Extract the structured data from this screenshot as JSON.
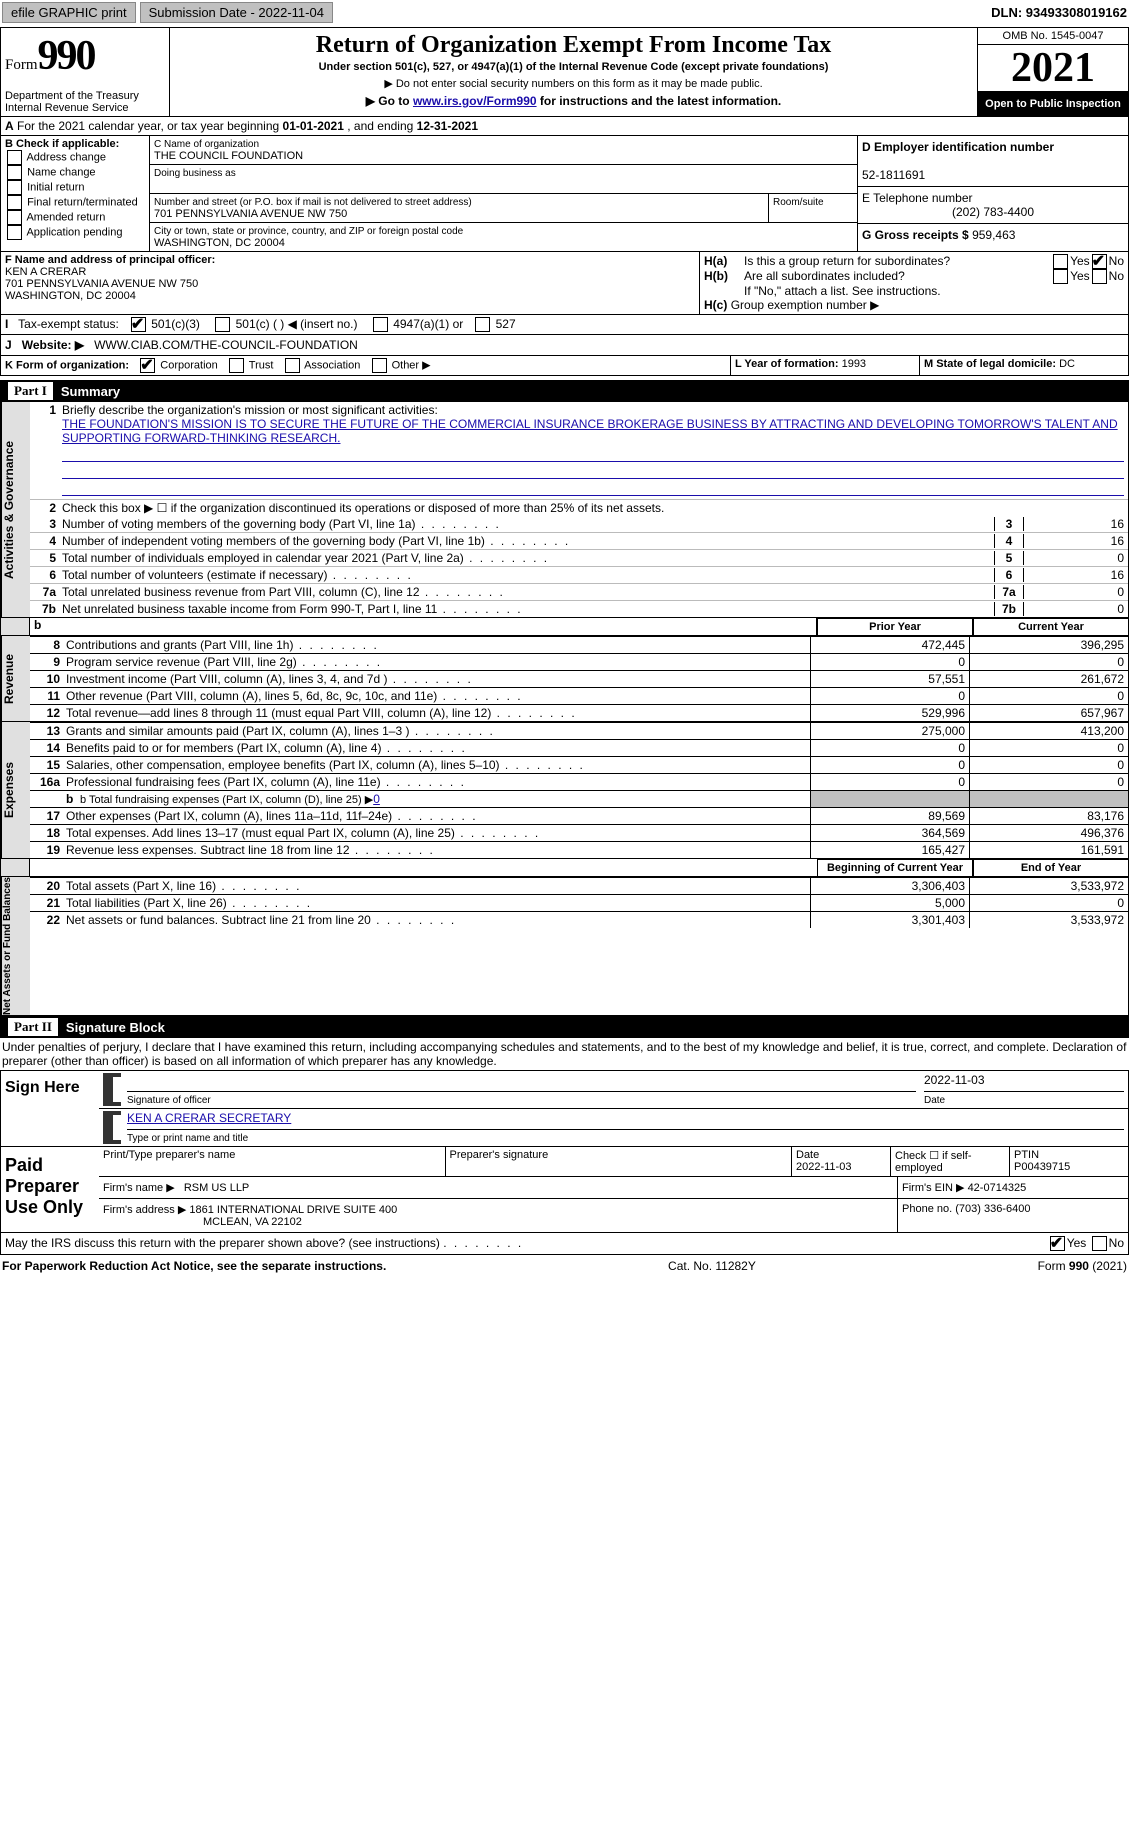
{
  "topbar": {
    "efile_label": "efile GRAPHIC print",
    "submission_label": "Submission Date - 2022-11-04",
    "dln": "DLN: 93493308019162"
  },
  "header": {
    "form_word": "Form",
    "form_number": "990",
    "dept": "Department of the Treasury",
    "irs": "Internal Revenue Service",
    "title": "Return of Organization Exempt From Income Tax",
    "subtitle": "Under section 501(c), 527, or 4947(a)(1) of the Internal Revenue Code (except private foundations)",
    "note1": "▶ Do not enter social security numbers on this form as it may be made public.",
    "note2_pre": "▶ Go to ",
    "note2_link": "www.irs.gov/Form990",
    "note2_post": " for instructions and the latest information.",
    "omb": "OMB No. 1545-0047",
    "tax_year": "2021",
    "open": "Open to Public Inspection"
  },
  "periodA": {
    "text_pre": "For the 2021 calendar year, or tax year beginning ",
    "begin": "01-01-2021",
    "mid": " , and ending ",
    "end": "12-31-2021"
  },
  "boxB": {
    "label": "B Check if applicable:",
    "opts": [
      "Address change",
      "Name change",
      "Initial return",
      "Final return/terminated",
      "Amended return",
      "Application pending"
    ]
  },
  "boxC": {
    "name_label": "C Name of organization",
    "name": "THE COUNCIL FOUNDATION",
    "dba_label": "Doing business as",
    "street_label": "Number and street (or P.O. box if mail is not delivered to street address)",
    "room_label": "Room/suite",
    "street": "701 PENNSYLVANIA AVENUE NW 750",
    "city_label": "City or town, state or province, country, and ZIP or foreign postal code",
    "city": "WASHINGTON, DC  20004"
  },
  "boxD": {
    "label": "D Employer identification number",
    "value": "52-1811691"
  },
  "boxE": {
    "label": "E Telephone number",
    "value": "(202) 783-4400"
  },
  "boxG": {
    "label": "G Gross receipts $",
    "value": "959,463"
  },
  "boxF": {
    "label": "F Name and address of principal officer:",
    "name": "KEN A CRERAR",
    "addr": "701 PENNSYLVANIA AVENUE NW 750",
    "city": "WASHINGTON, DC  20004"
  },
  "boxH": {
    "a": "Is this a group return for subordinates?",
    "b": "Are all subordinates included?",
    "note": "If \"No,\" attach a list. See instructions.",
    "c": "Group exemption number ▶",
    "yes": "Yes",
    "no": "No"
  },
  "boxI": {
    "label": "Tax-exempt status:",
    "o1": "501(c)(3)",
    "o2": "501(c) (  ) ◀ (insert no.)",
    "o3": "4947(a)(1) or",
    "o4": "527"
  },
  "boxJ": {
    "label": "Website: ▶",
    "value": "WWW.CIAB.COM/THE-COUNCIL-FOUNDATION"
  },
  "boxK": {
    "label": "K Form of organization:",
    "opts": [
      "Corporation",
      "Trust",
      "Association",
      "Other ▶"
    ]
  },
  "boxL": {
    "label": "L Year of formation:",
    "value": "1993"
  },
  "boxM": {
    "label": "M State of legal domicile:",
    "value": "DC"
  },
  "part1": {
    "title_part": "Part I",
    "title": "Summary",
    "mission_label": "Briefly describe the organization's mission or most significant activities:",
    "mission": "THE FOUNDATION'S MISSION IS TO SECURE THE FUTURE OF THE COMMERCIAL INSURANCE BROKERAGE BUSINESS BY ATTRACTING AND DEVELOPING TOMORROW'S TALENT AND SUPPORTING FORWARD-THINKING RESEARCH.",
    "line2": "Check this box ▶ ☐ if the organization discontinued its operations or disposed of more than 25% of its net assets.",
    "lines_gov": [
      {
        "n": "3",
        "t": "Number of voting members of the governing body (Part VI, line 1a)",
        "v": "16"
      },
      {
        "n": "4",
        "t": "Number of independent voting members of the governing body (Part VI, line 1b)",
        "v": "16"
      },
      {
        "n": "5",
        "t": "Total number of individuals employed in calendar year 2021 (Part V, line 2a)",
        "v": "0"
      },
      {
        "n": "6",
        "t": "Total number of volunteers (estimate if necessary)",
        "v": "16"
      },
      {
        "n": "7a",
        "t": "Total unrelated business revenue from Part VIII, column (C), line 12",
        "v": "0"
      },
      {
        "n": "7b",
        "t": "Net unrelated business taxable income from Form 990-T, Part I, line 11",
        "v": "0"
      }
    ],
    "head_prior": "Prior Year",
    "head_cur": "Current Year",
    "revenue": [
      {
        "n": "8",
        "t": "Contributions and grants (Part VIII, line 1h)",
        "p": "472,445",
        "c": "396,295"
      },
      {
        "n": "9",
        "t": "Program service revenue (Part VIII, line 2g)",
        "p": "0",
        "c": "0"
      },
      {
        "n": "10",
        "t": "Investment income (Part VIII, column (A), lines 3, 4, and 7d )",
        "p": "57,551",
        "c": "261,672"
      },
      {
        "n": "11",
        "t": "Other revenue (Part VIII, column (A), lines 5, 6d, 8c, 9c, 10c, and 11e)",
        "p": "0",
        "c": "0"
      },
      {
        "n": "12",
        "t": "Total revenue—add lines 8 through 11 (must equal Part VIII, column (A), line 12)",
        "p": "529,996",
        "c": "657,967"
      }
    ],
    "expenses": [
      {
        "n": "13",
        "t": "Grants and similar amounts paid (Part IX, column (A), lines 1–3 )",
        "p": "275,000",
        "c": "413,200"
      },
      {
        "n": "14",
        "t": "Benefits paid to or for members (Part IX, column (A), line 4)",
        "p": "0",
        "c": "0"
      },
      {
        "n": "15",
        "t": "Salaries, other compensation, employee benefits (Part IX, column (A), lines 5–10)",
        "p": "0",
        "c": "0"
      },
      {
        "n": "16a",
        "t": "Professional fundraising fees (Part IX, column (A), line 11e)",
        "p": "0",
        "c": "0"
      }
    ],
    "line16b_label": "b  Total fundraising expenses (Part IX, column (D), line 25) ▶",
    "line16b_val": "0",
    "expenses2": [
      {
        "n": "17",
        "t": "Other expenses (Part IX, column (A), lines 11a–11d, 11f–24e)",
        "p": "89,569",
        "c": "83,176"
      },
      {
        "n": "18",
        "t": "Total expenses. Add lines 13–17 (must equal Part IX, column (A), line 25)",
        "p": "364,569",
        "c": "496,376"
      },
      {
        "n": "19",
        "t": "Revenue less expenses. Subtract line 18 from line 12",
        "p": "165,427",
        "c": "161,591"
      }
    ],
    "head_begin": "Beginning of Current Year",
    "head_end": "End of Year",
    "netassets": [
      {
        "n": "20",
        "t": "Total assets (Part X, line 16)",
        "p": "3,306,403",
        "c": "3,533,972"
      },
      {
        "n": "21",
        "t": "Total liabilities (Part X, line 26)",
        "p": "5,000",
        "c": "0"
      },
      {
        "n": "22",
        "t": "Net assets or fund balances. Subtract line 21 from line 20",
        "p": "3,301,403",
        "c": "3,533,972"
      }
    ],
    "vtext_gov": "Activities & Governance",
    "vtext_rev": "Revenue",
    "vtext_exp": "Expenses",
    "vtext_net": "Net Assets or Fund Balances"
  },
  "part2": {
    "title_part": "Part II",
    "title": "Signature Block",
    "jurat": "Under penalties of perjury, I declare that I have examined this return, including accompanying schedules and statements, and to the best of my knowledge and belief, it is true, correct, and complete. Declaration of preparer (other than officer) is based on all information of which preparer has any knowledge."
  },
  "sign": {
    "here": "Sign Here",
    "sig_label": "Signature of officer",
    "date_label": "Date",
    "date": "2022-11-03",
    "name": "KEN A CRERAR  SECRETARY",
    "name_label": "Type or print name and title"
  },
  "paid": {
    "title": "Paid Preparer Use Only",
    "prep_name_label": "Print/Type preparer's name",
    "prep_sig_label": "Preparer's signature",
    "date_label": "Date",
    "date": "2022-11-03",
    "self_label": "Check ☐ if self-employed",
    "ptin_label": "PTIN",
    "ptin": "P00439715",
    "firm_name_label": "Firm's name   ▶",
    "firm_name": "RSM US LLP",
    "firm_ein_label": "Firm's EIN ▶",
    "firm_ein": "42-0714325",
    "firm_addr_label": "Firm's address ▶",
    "firm_addr1": "1861 INTERNATIONAL DRIVE SUITE 400",
    "firm_addr2": "MCLEAN, VA  22102",
    "phone_label": "Phone no.",
    "phone": "(703) 336-6400"
  },
  "discuss": {
    "text": "May the IRS discuss this return with the preparer shown above? (see instructions)",
    "yes": "Yes",
    "no": "No"
  },
  "footer": {
    "pra": "For Paperwork Reduction Act Notice, see the separate instructions.",
    "cat": "Cat. No. 11282Y",
    "form": "Form 990 (2021)"
  }
}
